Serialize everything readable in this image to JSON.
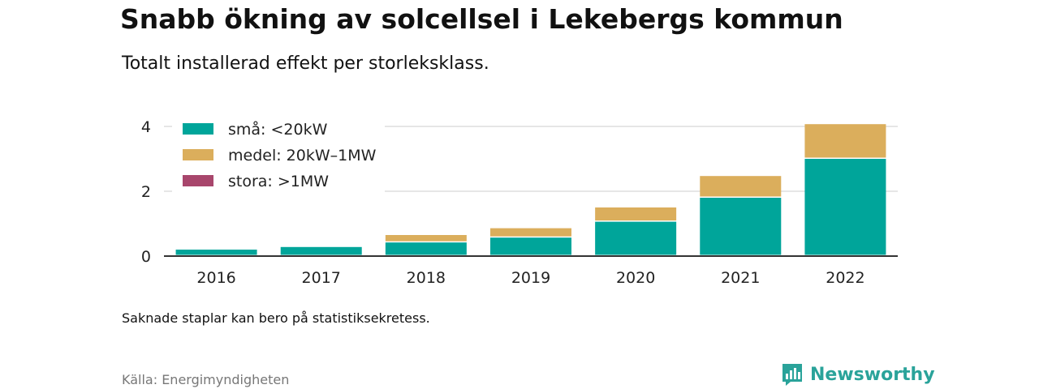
{
  "header": {
    "title": "Snabb ökning av solcellsel i Lekebergs kommun",
    "subtitle": "Totalt installerad effekt per storleksklass."
  },
  "footer": {
    "note": "Saknade staplar kan bero på statistiksekretess.",
    "source": "Källa: Energimyndigheten",
    "brand": "Newsworthy",
    "brand_icon": "bar-chart-logo-icon"
  },
  "chart_data": {
    "type": "bar",
    "stacked": true,
    "title": "Snabb ökning av solcellsel i Lekebergs kommun",
    "subtitle": "Totalt installerad effekt per storleksklass.",
    "xlabel": "",
    "ylabel": "",
    "categories": [
      "2016",
      "2017",
      "2018",
      "2019",
      "2020",
      "2021",
      "2022"
    ],
    "series": [
      {
        "name": "små: <20kW",
        "color": "#00a59a",
        "values": [
          0.2,
          0.28,
          0.42,
          0.57,
          1.06,
          1.8,
          3.0
        ]
      },
      {
        "name": "medel: 20kW–1MW",
        "color": "#dbae5c",
        "values": [
          0.0,
          0.0,
          0.23,
          0.29,
          0.44,
          0.67,
          1.07
        ]
      },
      {
        "name": "stora: >1MW",
        "color": "#a8466c",
        "values": [
          0,
          0,
          0,
          0,
          0,
          0,
          0
        ]
      }
    ],
    "yticks": [
      0,
      2,
      4
    ],
    "ylim": [
      0,
      4.15
    ],
    "grid": true,
    "legend": "top-left"
  }
}
